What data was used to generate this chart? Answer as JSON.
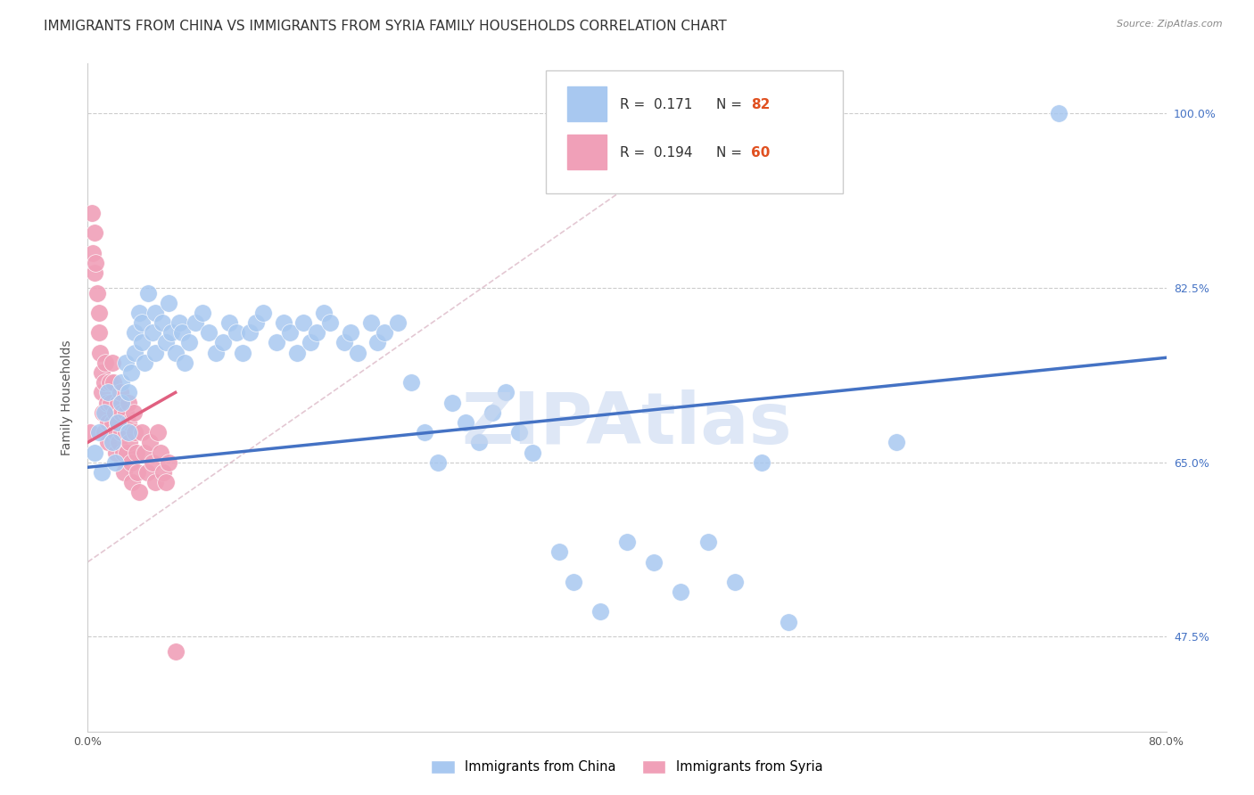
{
  "title": "IMMIGRANTS FROM CHINA VS IMMIGRANTS FROM SYRIA FAMILY HOUSEHOLDS CORRELATION CHART",
  "source": "Source: ZipAtlas.com",
  "ylabel": "Family Households",
  "y_tick_labels_right": [
    "47.5%",
    "65.0%",
    "82.5%",
    "100.0%"
  ],
  "y_tick_values_right": [
    0.475,
    0.65,
    0.825,
    1.0
  ],
  "xlim": [
    0.0,
    0.8
  ],
  "ylim": [
    0.38,
    1.05
  ],
  "legend_china_r": "0.171",
  "legend_china_n": "82",
  "legend_syria_r": "0.194",
  "legend_syria_n": "60",
  "china_color": "#a8c8f0",
  "syria_color": "#f0a0b8",
  "china_line_color": "#4472c4",
  "syria_line_color": "#e06080",
  "watermark": "ZIPAtlas",
  "watermark_color": "#c8d8f0",
  "title_fontsize": 11,
  "axis_label_fontsize": 10,
  "tick_label_fontsize": 9,
  "china_scatter_x": [
    0.005,
    0.008,
    0.01,
    0.012,
    0.015,
    0.018,
    0.02,
    0.022,
    0.025,
    0.025,
    0.028,
    0.03,
    0.03,
    0.032,
    0.035,
    0.035,
    0.038,
    0.04,
    0.04,
    0.042,
    0.045,
    0.048,
    0.05,
    0.05,
    0.055,
    0.058,
    0.06,
    0.062,
    0.065,
    0.068,
    0.07,
    0.072,
    0.075,
    0.08,
    0.085,
    0.09,
    0.095,
    0.1,
    0.105,
    0.11,
    0.115,
    0.12,
    0.125,
    0.13,
    0.14,
    0.145,
    0.15,
    0.155,
    0.16,
    0.165,
    0.17,
    0.175,
    0.18,
    0.19,
    0.195,
    0.2,
    0.21,
    0.215,
    0.22,
    0.23,
    0.24,
    0.25,
    0.26,
    0.27,
    0.28,
    0.29,
    0.3,
    0.31,
    0.32,
    0.33,
    0.35,
    0.36,
    0.38,
    0.4,
    0.42,
    0.44,
    0.46,
    0.48,
    0.5,
    0.52,
    0.6,
    0.72
  ],
  "china_scatter_y": [
    0.66,
    0.68,
    0.64,
    0.7,
    0.72,
    0.67,
    0.65,
    0.69,
    0.71,
    0.73,
    0.75,
    0.68,
    0.72,
    0.74,
    0.78,
    0.76,
    0.8,
    0.77,
    0.79,
    0.75,
    0.82,
    0.78,
    0.8,
    0.76,
    0.79,
    0.77,
    0.81,
    0.78,
    0.76,
    0.79,
    0.78,
    0.75,
    0.77,
    0.79,
    0.8,
    0.78,
    0.76,
    0.77,
    0.79,
    0.78,
    0.76,
    0.78,
    0.79,
    0.8,
    0.77,
    0.79,
    0.78,
    0.76,
    0.79,
    0.77,
    0.78,
    0.8,
    0.79,
    0.77,
    0.78,
    0.76,
    0.79,
    0.77,
    0.78,
    0.79,
    0.73,
    0.68,
    0.65,
    0.71,
    0.69,
    0.67,
    0.7,
    0.72,
    0.68,
    0.66,
    0.56,
    0.53,
    0.5,
    0.57,
    0.55,
    0.52,
    0.57,
    0.53,
    0.65,
    0.49,
    0.67,
    1.0
  ],
  "syria_scatter_x": [
    0.002,
    0.003,
    0.004,
    0.005,
    0.005,
    0.006,
    0.007,
    0.008,
    0.008,
    0.009,
    0.01,
    0.01,
    0.011,
    0.012,
    0.012,
    0.013,
    0.014,
    0.015,
    0.015,
    0.016,
    0.017,
    0.018,
    0.018,
    0.019,
    0.02,
    0.02,
    0.021,
    0.022,
    0.022,
    0.023,
    0.024,
    0.025,
    0.025,
    0.026,
    0.027,
    0.028,
    0.028,
    0.029,
    0.03,
    0.03,
    0.031,
    0.032,
    0.033,
    0.034,
    0.035,
    0.036,
    0.037,
    0.038,
    0.04,
    0.042,
    0.044,
    0.046,
    0.048,
    0.05,
    0.052,
    0.054,
    0.056,
    0.058,
    0.06,
    0.065
  ],
  "syria_scatter_y": [
    0.68,
    0.9,
    0.86,
    0.88,
    0.84,
    0.85,
    0.82,
    0.8,
    0.78,
    0.76,
    0.74,
    0.72,
    0.7,
    0.68,
    0.73,
    0.75,
    0.71,
    0.69,
    0.67,
    0.73,
    0.71,
    0.69,
    0.75,
    0.73,
    0.7,
    0.68,
    0.66,
    0.71,
    0.69,
    0.67,
    0.72,
    0.7,
    0.68,
    0.66,
    0.64,
    0.7,
    0.68,
    0.66,
    0.71,
    0.69,
    0.67,
    0.65,
    0.63,
    0.7,
    0.68,
    0.66,
    0.64,
    0.62,
    0.68,
    0.66,
    0.64,
    0.67,
    0.65,
    0.63,
    0.68,
    0.66,
    0.64,
    0.63,
    0.65,
    0.46
  ],
  "china_line_x": [
    0.0,
    0.8
  ],
  "china_line_y": [
    0.645,
    0.755
  ],
  "syria_line_x": [
    0.0,
    0.065
  ],
  "syria_line_y": [
    0.67,
    0.72
  ],
  "ref_line_x": [
    0.0,
    0.5
  ],
  "ref_line_y": [
    0.55,
    1.02
  ]
}
